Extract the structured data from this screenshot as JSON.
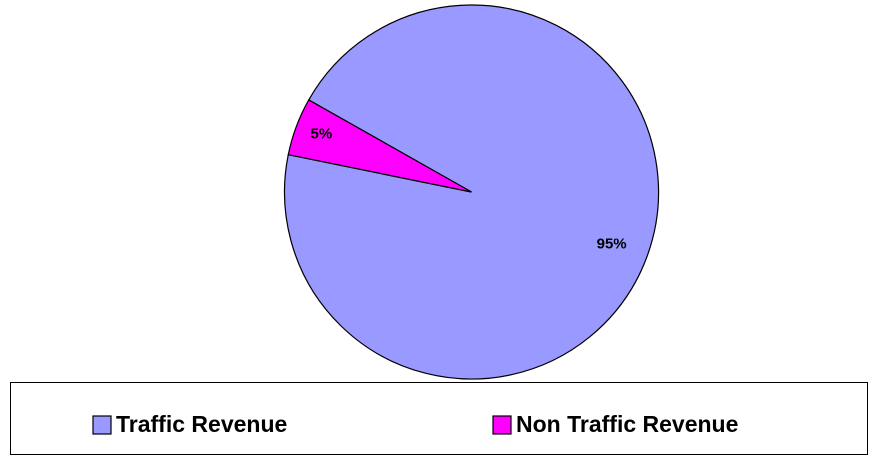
{
  "chart_data": {
    "type": "pie",
    "categories": [
      "Traffic Revenue",
      "Non Traffic Revenue"
    ],
    "values": [
      95,
      5
    ],
    "value_labels": [
      "95%",
      "5%"
    ],
    "colors": [
      "#9999ff",
      "#ff00ff"
    ],
    "legend": "bottom"
  }
}
